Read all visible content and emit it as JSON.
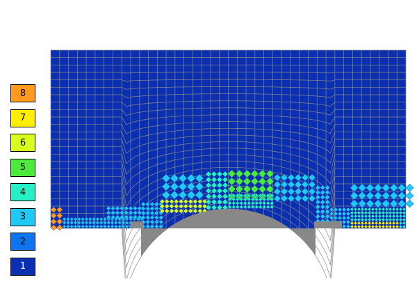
{
  "legend": {
    "items": [
      {
        "label": "8",
        "color": "#ff9a1e"
      },
      {
        "label": "7",
        "color": "#ffee00"
      },
      {
        "label": "6",
        "color": "#d7ff1c"
      },
      {
        "label": "5",
        "color": "#4bea3d"
      },
      {
        "label": "4",
        "color": "#26f0c6"
      },
      {
        "label": "3",
        "color": "#1fc8f5"
      },
      {
        "label": "2",
        "color": "#0d75ef"
      },
      {
        "label": "1",
        "color": "#0a2fb0"
      }
    ]
  },
  "mesh": {
    "background_color": "#0a2fb0",
    "grid_line_color": "#8a8a8a",
    "body_color": "#888888",
    "refined_levels": {
      "low_block_left": 3,
      "corner_block_left": 8,
      "bump_outer": 3,
      "bump_inner": 4,
      "bump_peak": 5,
      "bump_wall": 6,
      "right_step": 3,
      "right_floor": 7
    }
  }
}
